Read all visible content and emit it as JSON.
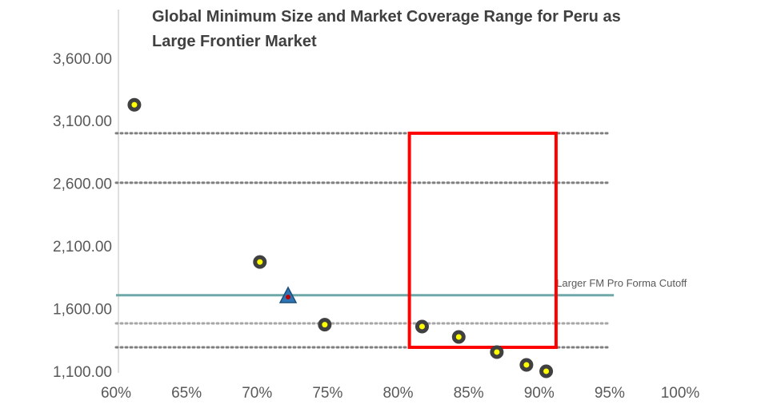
{
  "chart_data": {
    "type": "scatter",
    "title": "Global Minimum Size and Market Coverage Range for Peru as Large Frontier Market",
    "x": [
      61.3,
      70.2,
      74.8,
      81.7,
      84.3,
      87.0,
      89.1,
      90.5
    ],
    "values": [
      3240,
      1985,
      1485,
      1470,
      1387,
      1266,
      1164,
      1113
    ],
    "color": "#ffff00",
    "edge_color": "#404040",
    "highlight_point": {
      "x": 72.2,
      "y": 1712,
      "color": "#2e75b6",
      "center_color": "#c00000"
    },
    "reference_lines": [
      {
        "y": 3013,
        "x": [
          60,
          95
        ],
        "color": "#7f7f7f",
        "style": "dotted"
      },
      {
        "y": 2618,
        "x": [
          60,
          95
        ],
        "color": "#7f7f7f",
        "style": "dotted"
      },
      {
        "y": 1495,
        "x": [
          60,
          95
        ],
        "color": "#a6a6a6",
        "style": "dotted"
      },
      {
        "y": 1304,
        "x": [
          60,
          95
        ],
        "color": "#7f7f7f",
        "style": "dotted"
      }
    ],
    "cutoff": {
      "y": 1720,
      "x": [
        60,
        95.3
      ],
      "color": "#6fa8a8",
      "label": "Larger FM Pro Forma Cutoff"
    },
    "highlight_box": {
      "x": [
        80.8,
        91.2
      ],
      "y": [
        1304,
        3013
      ],
      "color": "#ff0000"
    },
    "xlim": [
      60,
      100
    ],
    "xticks": [
      {
        "value": 60,
        "label": "60%"
      },
      {
        "value": 65,
        "label": "65%"
      },
      {
        "value": 70,
        "label": "70%"
      },
      {
        "value": 75,
        "label": "75%"
      },
      {
        "value": 80,
        "label": "80%"
      },
      {
        "value": 85,
        "label": "85%"
      },
      {
        "value": 90,
        "label": "90%"
      },
      {
        "value": 95,
        "label": "95%"
      },
      {
        "value": 100,
        "label": "100%"
      }
    ],
    "ylim": [
      1100,
      4000
    ],
    "yticks": [
      {
        "value": 1100,
        "label": "1,100.00"
      },
      {
        "value": 1600,
        "label": "1,600.00"
      },
      {
        "value": 2100,
        "label": "2,100.00"
      },
      {
        "value": 2600,
        "label": "2,600.00"
      },
      {
        "value": 3100,
        "label": "3,100.00"
      },
      {
        "value": 3600,
        "label": "3,600.00"
      }
    ],
    "grid": false
  }
}
